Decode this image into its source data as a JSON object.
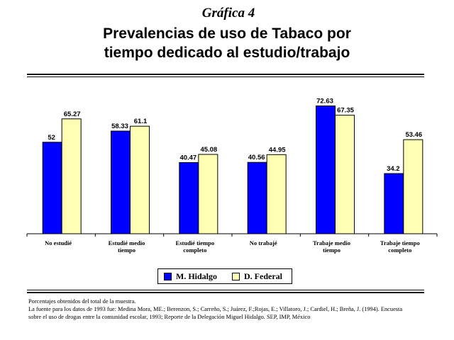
{
  "header": {
    "figure_label": "Gráfica 4",
    "title": "Prevalencias de uso de Tabaco por\ntiempo dedicado al estudio/trabajo"
  },
  "chart_data": {
    "type": "bar",
    "categories": [
      [
        "No estudié"
      ],
      [
        "Estudié medio",
        "tiempo"
      ],
      [
        "Estudié tiempo",
        "completo"
      ],
      [
        "No trabajé"
      ],
      [
        "Trabaje medio",
        "tiempo"
      ],
      [
        "Trabaje tiempo",
        "completo"
      ]
    ],
    "series": [
      {
        "name": "M. Hidalgo",
        "color": "#0000ff",
        "values": [
          52,
          58.33,
          40.47,
          40.56,
          72.63,
          34.2
        ]
      },
      {
        "name": "D. Federal",
        "color": "#ffffb4",
        "values": [
          65.27,
          61.1,
          45.08,
          44.95,
          67.35,
          53.46
        ]
      }
    ],
    "data_labels": [
      [
        "52",
        "58.33",
        "40.47",
        "40.56",
        "72.63",
        "34.2"
      ],
      [
        "65.27",
        "61.1",
        "45.08",
        "44.95",
        "67.35",
        "53.46"
      ]
    ],
    "ylim": [
      0,
      75
    ],
    "legend_position": "bottom"
  },
  "notes": [
    "Porcentajes obtenidos del total de la muestra.",
    "La fuente para los datos de 1993 fue: Medina Mora, ME.; Berenzon, S.; Carreño, S.; Juárez, F.;Rojas, E.; Villatoro, J.; Cardiel, H.; Breña, J. (1994). Encuesta",
    "sobre el uso de drogas entre la comunidad escolar, 1993; Reporte de la Delegación Miguel Hidalgo. SEP, IMP, México"
  ]
}
